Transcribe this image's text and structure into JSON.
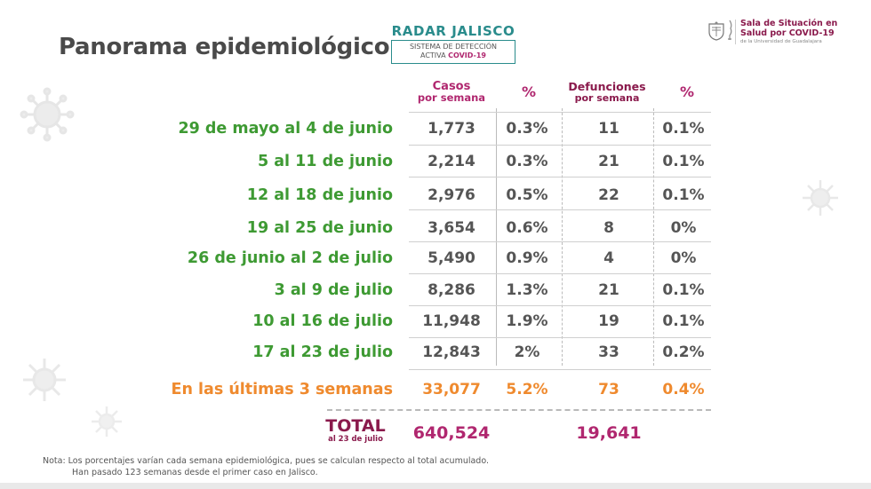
{
  "title": "Panorama epidemiológico",
  "radar": {
    "title": "RADAR JALISCO",
    "line1": "SISTEMA DE DETECCIÓN",
    "line2_prefix": "ACTIVA ",
    "line2_bold": "COVID-19"
  },
  "logo": {
    "line1": "Sala de Situación en",
    "line2": "Salud por COVID-19",
    "sub": "de la Universidad de Guadalajara"
  },
  "headers": {
    "cases_line1": "Casos",
    "cases_line2": "por semana",
    "pct1": "%",
    "deaths_line1": "Defunciones",
    "deaths_line2": "por semana",
    "pct2": "%"
  },
  "rows": [
    {
      "label": "29 de mayo al 4 de junio",
      "cases": "1,773",
      "cases_pct": "0.3%",
      "deaths": "11",
      "deaths_pct": "0.1%"
    },
    {
      "label": "5 al 11 de junio",
      "cases": "2,214",
      "cases_pct": "0.3%",
      "deaths": "21",
      "deaths_pct": "0.1%"
    },
    {
      "label": "12 al 18 de junio",
      "cases": "2,976",
      "cases_pct": "0.5%",
      "deaths": "22",
      "deaths_pct": "0.1%"
    },
    {
      "label": "19 al 25 de junio",
      "cases": "3,654",
      "cases_pct": "0.6%",
      "deaths": "8",
      "deaths_pct": "0%"
    },
    {
      "label": "26 de junio al 2 de julio",
      "cases": "5,490",
      "cases_pct": "0.9%",
      "deaths": "4",
      "deaths_pct": "0%"
    },
    {
      "label": "3 al 9 de julio",
      "cases": "8,286",
      "cases_pct": "1.3%",
      "deaths": "21",
      "deaths_pct": "0.1%"
    },
    {
      "label": "10 al 16 de julio",
      "cases": "11,948",
      "cases_pct": "1.9%",
      "deaths": "19",
      "deaths_pct": "0.1%"
    },
    {
      "label": "17 al 23 de julio",
      "cases": "12,843",
      "cases_pct": "2%",
      "deaths": "33",
      "deaths_pct": "0.2%"
    }
  ],
  "summary": {
    "label": "En las últimas 3 semanas",
    "cases": "33,077",
    "cases_pct": "5.2%",
    "deaths": "73",
    "deaths_pct": "0.4%"
  },
  "total": {
    "label": "TOTAL",
    "sublabel": "al 23 de julio",
    "cases": "640,524",
    "deaths": "19,641"
  },
  "note": {
    "line1": "Nota: Los porcentajes varían cada semana epidemiológica, pues se calculan respecto al total acumulado.",
    "line2": "Han pasado 123 semanas desde el primer caso en Jalisco."
  },
  "colors": {
    "label_green": "#3e9a33",
    "summary_orange": "#ef8a2e",
    "header_magenta": "#b0276f",
    "radar_teal": "#2a8c8c"
  }
}
